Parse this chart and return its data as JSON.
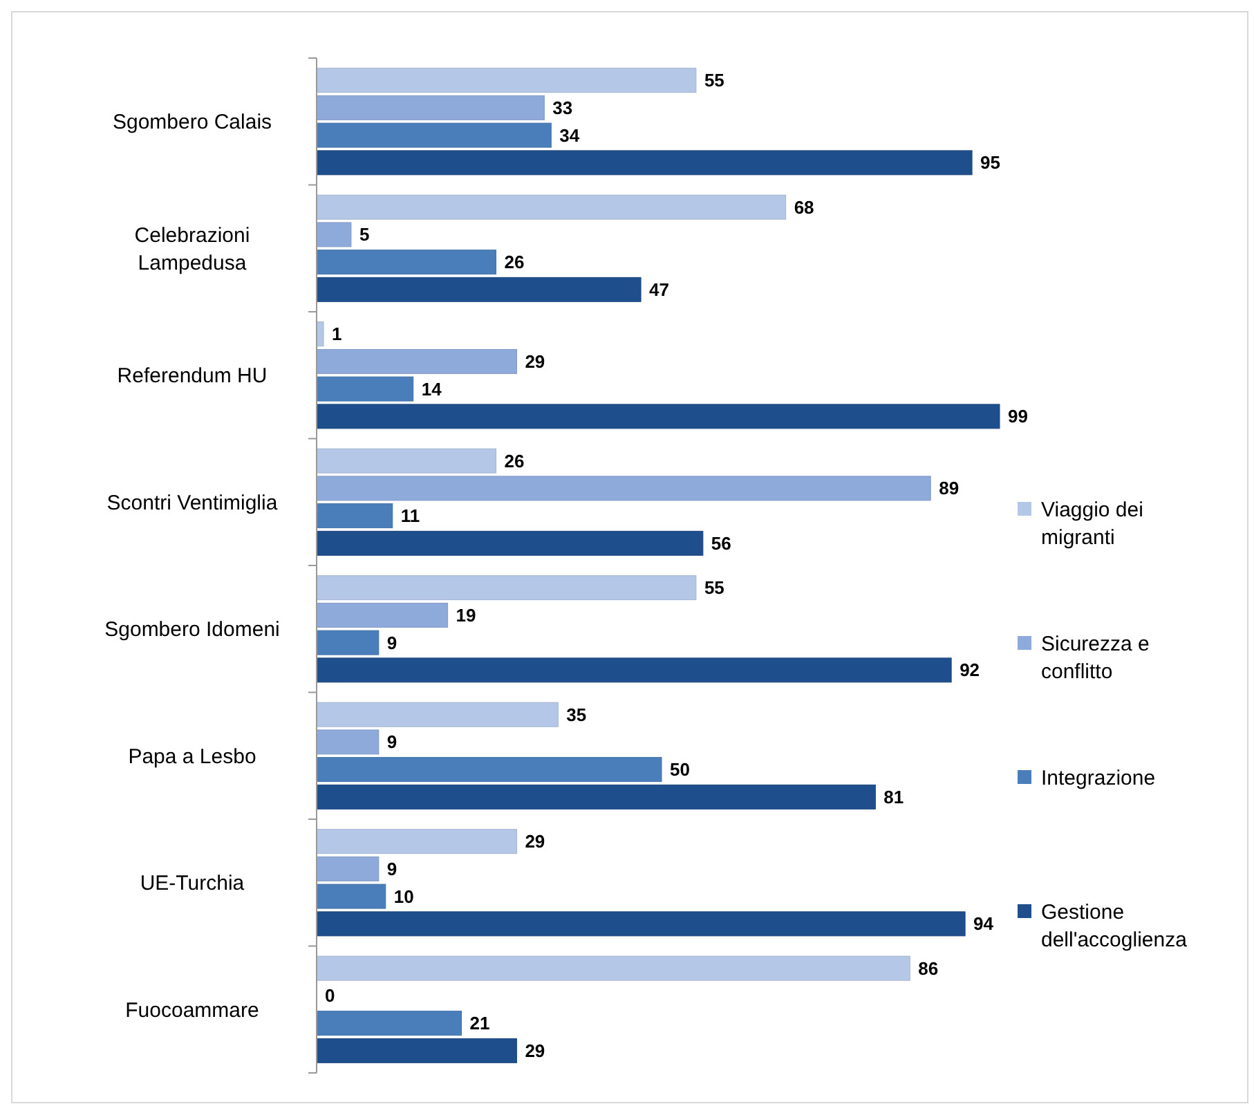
{
  "chart_data": {
    "type": "bar",
    "orientation": "horizontal",
    "categories": [
      "Sgombero Calais",
      "Celebrazioni Lampedusa",
      "Referendum HU",
      "Scontri Ventimiglia",
      "Sgombero Idomeni",
      "Papa a Lesbo",
      "UE-Turchia",
      "Fuocoammare"
    ],
    "series": [
      {
        "name": "Viaggio dei migranti",
        "color": "#b4c7e7",
        "values": [
          55,
          68,
          1,
          26,
          55,
          35,
          29,
          86
        ]
      },
      {
        "name": "Sicurezza e conflitto",
        "color": "#8eaadb",
        "values": [
          33,
          5,
          29,
          89,
          19,
          9,
          9,
          0
        ]
      },
      {
        "name": "Integrazione",
        "color": "#4a7ebb",
        "values": [
          34,
          26,
          14,
          11,
          9,
          50,
          10,
          21
        ]
      },
      {
        "name": "Gestione dell'accoglienza",
        "color": "#1f4e8c",
        "values": [
          95,
          47,
          99,
          56,
          92,
          81,
          94,
          29
        ]
      }
    ],
    "data_labels": true,
    "legend": "right",
    "grid": false
  }
}
